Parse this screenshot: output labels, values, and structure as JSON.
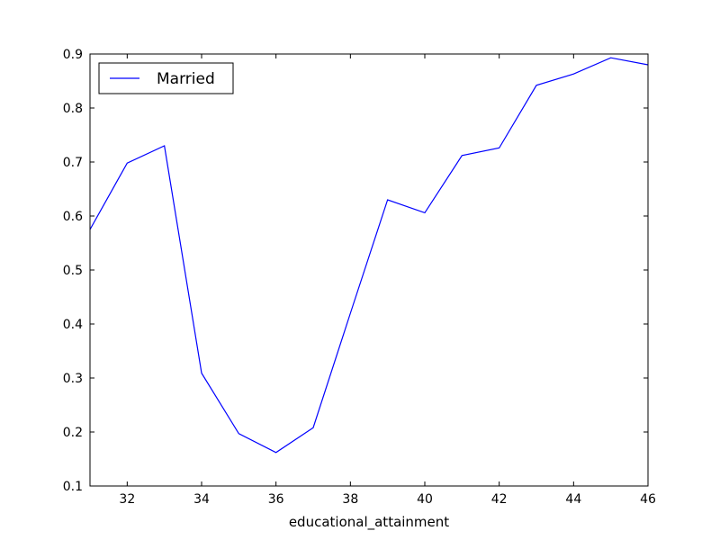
{
  "chart_data": {
    "type": "line",
    "title": "",
    "xlabel": "educational_attainment",
    "ylabel": "",
    "xlim": [
      31,
      46
    ],
    "ylim": [
      0.1,
      0.9
    ],
    "xticks": [
      "32",
      "34",
      "36",
      "38",
      "40",
      "42",
      "44",
      "46"
    ],
    "yticks": [
      "0.1",
      "0.2",
      "0.3",
      "0.4",
      "0.5",
      "0.6",
      "0.7",
      "0.8",
      "0.9"
    ],
    "grid": false,
    "legend_position": "upper-left",
    "series": [
      {
        "name": "Married",
        "color": "#0000ff",
        "x": [
          31,
          32,
          33,
          34,
          35,
          36,
          37,
          38,
          39,
          40,
          41,
          42,
          43,
          44,
          45,
          46
        ],
        "y": [
          0.575,
          0.698,
          0.73,
          0.309,
          0.197,
          0.162,
          0.208,
          0.42,
          0.63,
          0.606,
          0.712,
          0.726,
          0.842,
          0.863,
          0.893,
          0.88
        ]
      }
    ]
  }
}
